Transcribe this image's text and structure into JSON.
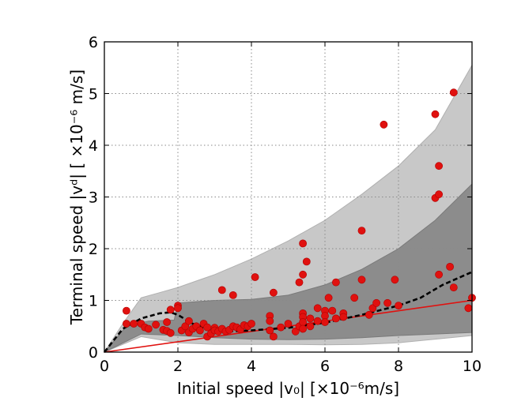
{
  "chart_data": {
    "type": "scatter",
    "xlabel": "Initial speed |v₀| [×10⁻⁶m/s]",
    "ylabel": "Terminal speed |vᵈ| [ ×10⁻⁶ m/s]",
    "xlim": [
      0,
      10
    ],
    "ylim": [
      0,
      6
    ],
    "xticks": [
      "0",
      "2",
      "4",
      "6",
      "8",
      "10"
    ],
    "yticks": [
      "0",
      "1",
      "2",
      "3",
      "4",
      "5",
      "6"
    ],
    "grid": true,
    "colors": {
      "outer_band": "#c8c8c8",
      "inner_band": "#8c8c8c",
      "points": "#e0110f",
      "reference_line": "#e0110f",
      "mean_curve": "#000000"
    },
    "outer_band": {
      "upper": [
        [
          0,
          0
        ],
        [
          0.5,
          0.55
        ],
        [
          1.0,
          1.05
        ],
        [
          1.5,
          1.15
        ],
        [
          2.0,
          1.25
        ],
        [
          3,
          1.5
        ],
        [
          4,
          1.8
        ],
        [
          5,
          2.15
        ],
        [
          6,
          2.55
        ],
        [
          7,
          3.05
        ],
        [
          8,
          3.6
        ],
        [
          9,
          4.3
        ],
        [
          10,
          5.55
        ]
      ],
      "lower": [
        [
          0,
          0
        ],
        [
          1,
          0.3
        ],
        [
          2,
          0.18
        ],
        [
          3,
          0.15
        ],
        [
          4,
          0.15
        ],
        [
          5,
          0.15
        ],
        [
          6,
          0.14
        ],
        [
          7,
          0.15
        ],
        [
          8,
          0.18
        ],
        [
          9,
          0.25
        ],
        [
          10,
          0.32
        ]
      ]
    },
    "inner_band": {
      "upper": [
        [
          0,
          0
        ],
        [
          0.6,
          0.5
        ],
        [
          1.2,
          0.6
        ],
        [
          1.9,
          0.62
        ],
        [
          2,
          0.95
        ],
        [
          3,
          1.0
        ],
        [
          4,
          1.02
        ],
        [
          5,
          1.1
        ],
        [
          6,
          1.3
        ],
        [
          7,
          1.6
        ],
        [
          8,
          2.0
        ],
        [
          9,
          2.55
        ],
        [
          10,
          3.25
        ]
      ],
      "lower": [
        [
          0,
          0
        ],
        [
          1,
          0.35
        ],
        [
          2,
          0.32
        ],
        [
          3,
          0.28
        ],
        [
          4,
          0.25
        ],
        [
          5,
          0.24
        ],
        [
          6,
          0.25
        ],
        [
          7,
          0.28
        ],
        [
          8,
          0.32
        ],
        [
          9,
          0.35
        ],
        [
          10,
          0.38
        ]
      ]
    },
    "reference_line": [
      [
        0,
        0
      ],
      [
        10,
        1.0
      ]
    ],
    "mean_curve": [
      [
        0,
        0
      ],
      [
        0.5,
        0.45
      ],
      [
        1.0,
        0.65
      ],
      [
        1.5,
        0.75
      ],
      [
        1.8,
        0.77
      ],
      [
        2.0,
        0.72
      ],
      [
        2.4,
        0.55
      ],
      [
        2.8,
        0.45
      ],
      [
        3.3,
        0.4
      ],
      [
        4,
        0.42
      ],
      [
        5,
        0.47
      ],
      [
        6,
        0.57
      ],
      [
        7,
        0.72
      ],
      [
        8,
        0.9
      ],
      [
        8.6,
        1.05
      ],
      [
        9.2,
        1.3
      ],
      [
        10,
        1.55
      ]
    ],
    "points": [
      [
        0.6,
        0.8
      ],
      [
        0.6,
        0.55
      ],
      [
        0.8,
        0.55
      ],
      [
        1.0,
        0.55
      ],
      [
        1.1,
        0.48
      ],
      [
        1.2,
        0.45
      ],
      [
        1.4,
        0.53
      ],
      [
        1.6,
        0.43
      ],
      [
        1.7,
        0.41
      ],
      [
        1.7,
        0.58
      ],
      [
        1.8,
        0.37
      ],
      [
        1.8,
        0.82
      ],
      [
        2.0,
        0.9
      ],
      [
        2.0,
        0.85
      ],
      [
        2.1,
        0.42
      ],
      [
        2.2,
        0.5
      ],
      [
        2.3,
        0.38
      ],
      [
        2.3,
        0.6
      ],
      [
        2.4,
        0.45
      ],
      [
        2.5,
        0.5
      ],
      [
        2.6,
        0.42
      ],
      [
        2.7,
        0.55
      ],
      [
        2.8,
        0.3
      ],
      [
        2.8,
        0.48
      ],
      [
        2.9,
        0.36
      ],
      [
        3.0,
        0.47
      ],
      [
        3.0,
        0.42
      ],
      [
        3.1,
        0.4
      ],
      [
        3.2,
        0.45
      ],
      [
        3.2,
        1.2
      ],
      [
        3.3,
        0.4
      ],
      [
        3.4,
        0.43
      ],
      [
        3.5,
        0.5
      ],
      [
        3.5,
        1.1
      ],
      [
        3.6,
        0.48
      ],
      [
        3.7,
        0.44
      ],
      [
        3.8,
        0.52
      ],
      [
        3.9,
        0.5
      ],
      [
        4.0,
        0.55
      ],
      [
        4.1,
        1.45
      ],
      [
        4.5,
        0.7
      ],
      [
        4.5,
        0.6
      ],
      [
        4.5,
        0.42
      ],
      [
        4.6,
        0.3
      ],
      [
        4.6,
        1.15
      ],
      [
        4.8,
        0.48
      ],
      [
        5.0,
        0.55
      ],
      [
        5.2,
        0.4
      ],
      [
        5.3,
        0.5
      ],
      [
        5.3,
        1.35
      ],
      [
        5.4,
        2.1
      ],
      [
        5.4,
        1.5
      ],
      [
        5.4,
        0.75
      ],
      [
        5.4,
        0.68
      ],
      [
        5.4,
        0.58
      ],
      [
        5.4,
        0.45
      ],
      [
        5.5,
        1.75
      ],
      [
        5.6,
        0.65
      ],
      [
        5.6,
        0.5
      ],
      [
        5.8,
        0.85
      ],
      [
        5.8,
        0.6
      ],
      [
        6.0,
        0.8
      ],
      [
        6.0,
        0.7
      ],
      [
        6.0,
        0.58
      ],
      [
        6.1,
        1.05
      ],
      [
        6.2,
        0.8
      ],
      [
        6.3,
        0.65
      ],
      [
        6.3,
        1.35
      ],
      [
        6.5,
        0.75
      ],
      [
        6.5,
        0.68
      ],
      [
        6.8,
        1.05
      ],
      [
        7.0,
        1.4
      ],
      [
        7.0,
        2.35
      ],
      [
        7.2,
        0.72
      ],
      [
        7.3,
        0.85
      ],
      [
        7.4,
        0.95
      ],
      [
        7.6,
        4.4
      ],
      [
        7.7,
        0.95
      ],
      [
        7.9,
        1.4
      ],
      [
        8.0,
        0.9
      ],
      [
        9.0,
        2.98
      ],
      [
        9.0,
        4.6
      ],
      [
        9.1,
        3.05
      ],
      [
        9.1,
        3.6
      ],
      [
        9.1,
        1.5
      ],
      [
        9.4,
        1.65
      ],
      [
        9.5,
        1.25
      ],
      [
        9.5,
        5.02
      ],
      [
        9.9,
        0.85
      ],
      [
        10.0,
        1.05
      ]
    ]
  }
}
